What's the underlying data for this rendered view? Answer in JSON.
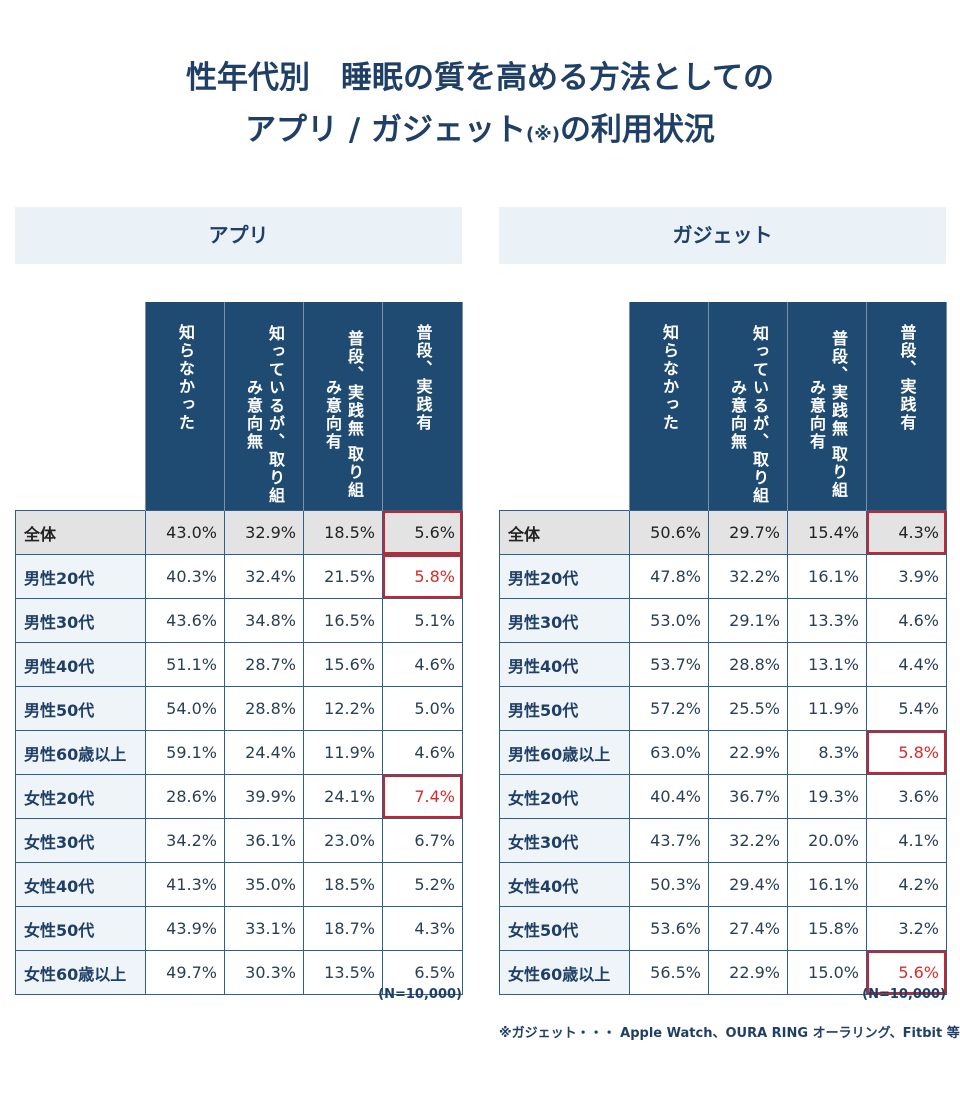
{
  "title": {
    "line1": "性年代別　睡眠の質を高める方法としての",
    "line2_a": "アプリ / ガジェット",
    "line2_mark": "(※)",
    "line2_b": "の利用状況"
  },
  "chart_data": {
    "type": "table",
    "columns": [
      "知らなかった",
      "知っているが、取り組み意向無",
      "普段、実践無 取り組み意向有",
      "普段、実践有"
    ],
    "rows": [
      "全体",
      "男性20代",
      "男性30代",
      "男性40代",
      "男性50代",
      "男性60歳以上",
      "女性20代",
      "女性30代",
      "女性40代",
      "女性50代",
      "女性60歳以上"
    ],
    "tables": [
      {
        "name": "アプリ",
        "values": [
          [
            "43.0%",
            "32.9%",
            "18.5%",
            "5.6%"
          ],
          [
            "40.3%",
            "32.4%",
            "21.5%",
            "5.8%"
          ],
          [
            "43.6%",
            "34.8%",
            "16.5%",
            "5.1%"
          ],
          [
            "51.1%",
            "28.7%",
            "15.6%",
            "4.6%"
          ],
          [
            "54.0%",
            "28.8%",
            "12.2%",
            "5.0%"
          ],
          [
            "59.1%",
            "24.4%",
            "11.9%",
            "4.6%"
          ],
          [
            "28.6%",
            "39.9%",
            "24.1%",
            "7.4%"
          ],
          [
            "34.2%",
            "36.1%",
            "23.0%",
            "6.7%"
          ],
          [
            "41.3%",
            "35.0%",
            "18.5%",
            "5.2%"
          ],
          [
            "43.9%",
            "33.1%",
            "18.7%",
            "4.3%"
          ],
          [
            "49.7%",
            "30.3%",
            "13.5%",
            "6.5%"
          ]
        ],
        "highlighted_rows_last_col": [
          0,
          1,
          6
        ],
        "n_note": "(N=10,000)"
      },
      {
        "name": "ガジェット",
        "values": [
          [
            "50.6%",
            "29.7%",
            "15.4%",
            "4.3%"
          ],
          [
            "47.8%",
            "32.2%",
            "16.1%",
            "3.9%"
          ],
          [
            "53.0%",
            "29.1%",
            "13.3%",
            "4.6%"
          ],
          [
            "53.7%",
            "28.8%",
            "13.1%",
            "4.4%"
          ],
          [
            "57.2%",
            "25.5%",
            "11.9%",
            "5.4%"
          ],
          [
            "63.0%",
            "22.9%",
            "8.3%",
            "5.8%"
          ],
          [
            "40.4%",
            "36.7%",
            "19.3%",
            "3.6%"
          ],
          [
            "43.7%",
            "32.2%",
            "20.0%",
            "4.1%"
          ],
          [
            "50.3%",
            "29.4%",
            "16.1%",
            "4.2%"
          ],
          [
            "53.6%",
            "27.4%",
            "15.8%",
            "3.2%"
          ],
          [
            "56.5%",
            "22.9%",
            "15.0%",
            "5.6%"
          ]
        ],
        "highlighted_rows_last_col": [
          0,
          5,
          10
        ],
        "n_note": "(N=10,000)"
      }
    ],
    "colors": {
      "header_bg": "#1f4a72",
      "text": "#1f3f66",
      "highlight": "#d92a2a",
      "total_row_bg": "#e3e3e3",
      "label_bg": "#eef4f8",
      "panel_header_bg": "#ebf2f7"
    }
  },
  "footnote": "※ガジェット・・・ Apple Watch、OURA RING オーラリング、Fitbit 等"
}
